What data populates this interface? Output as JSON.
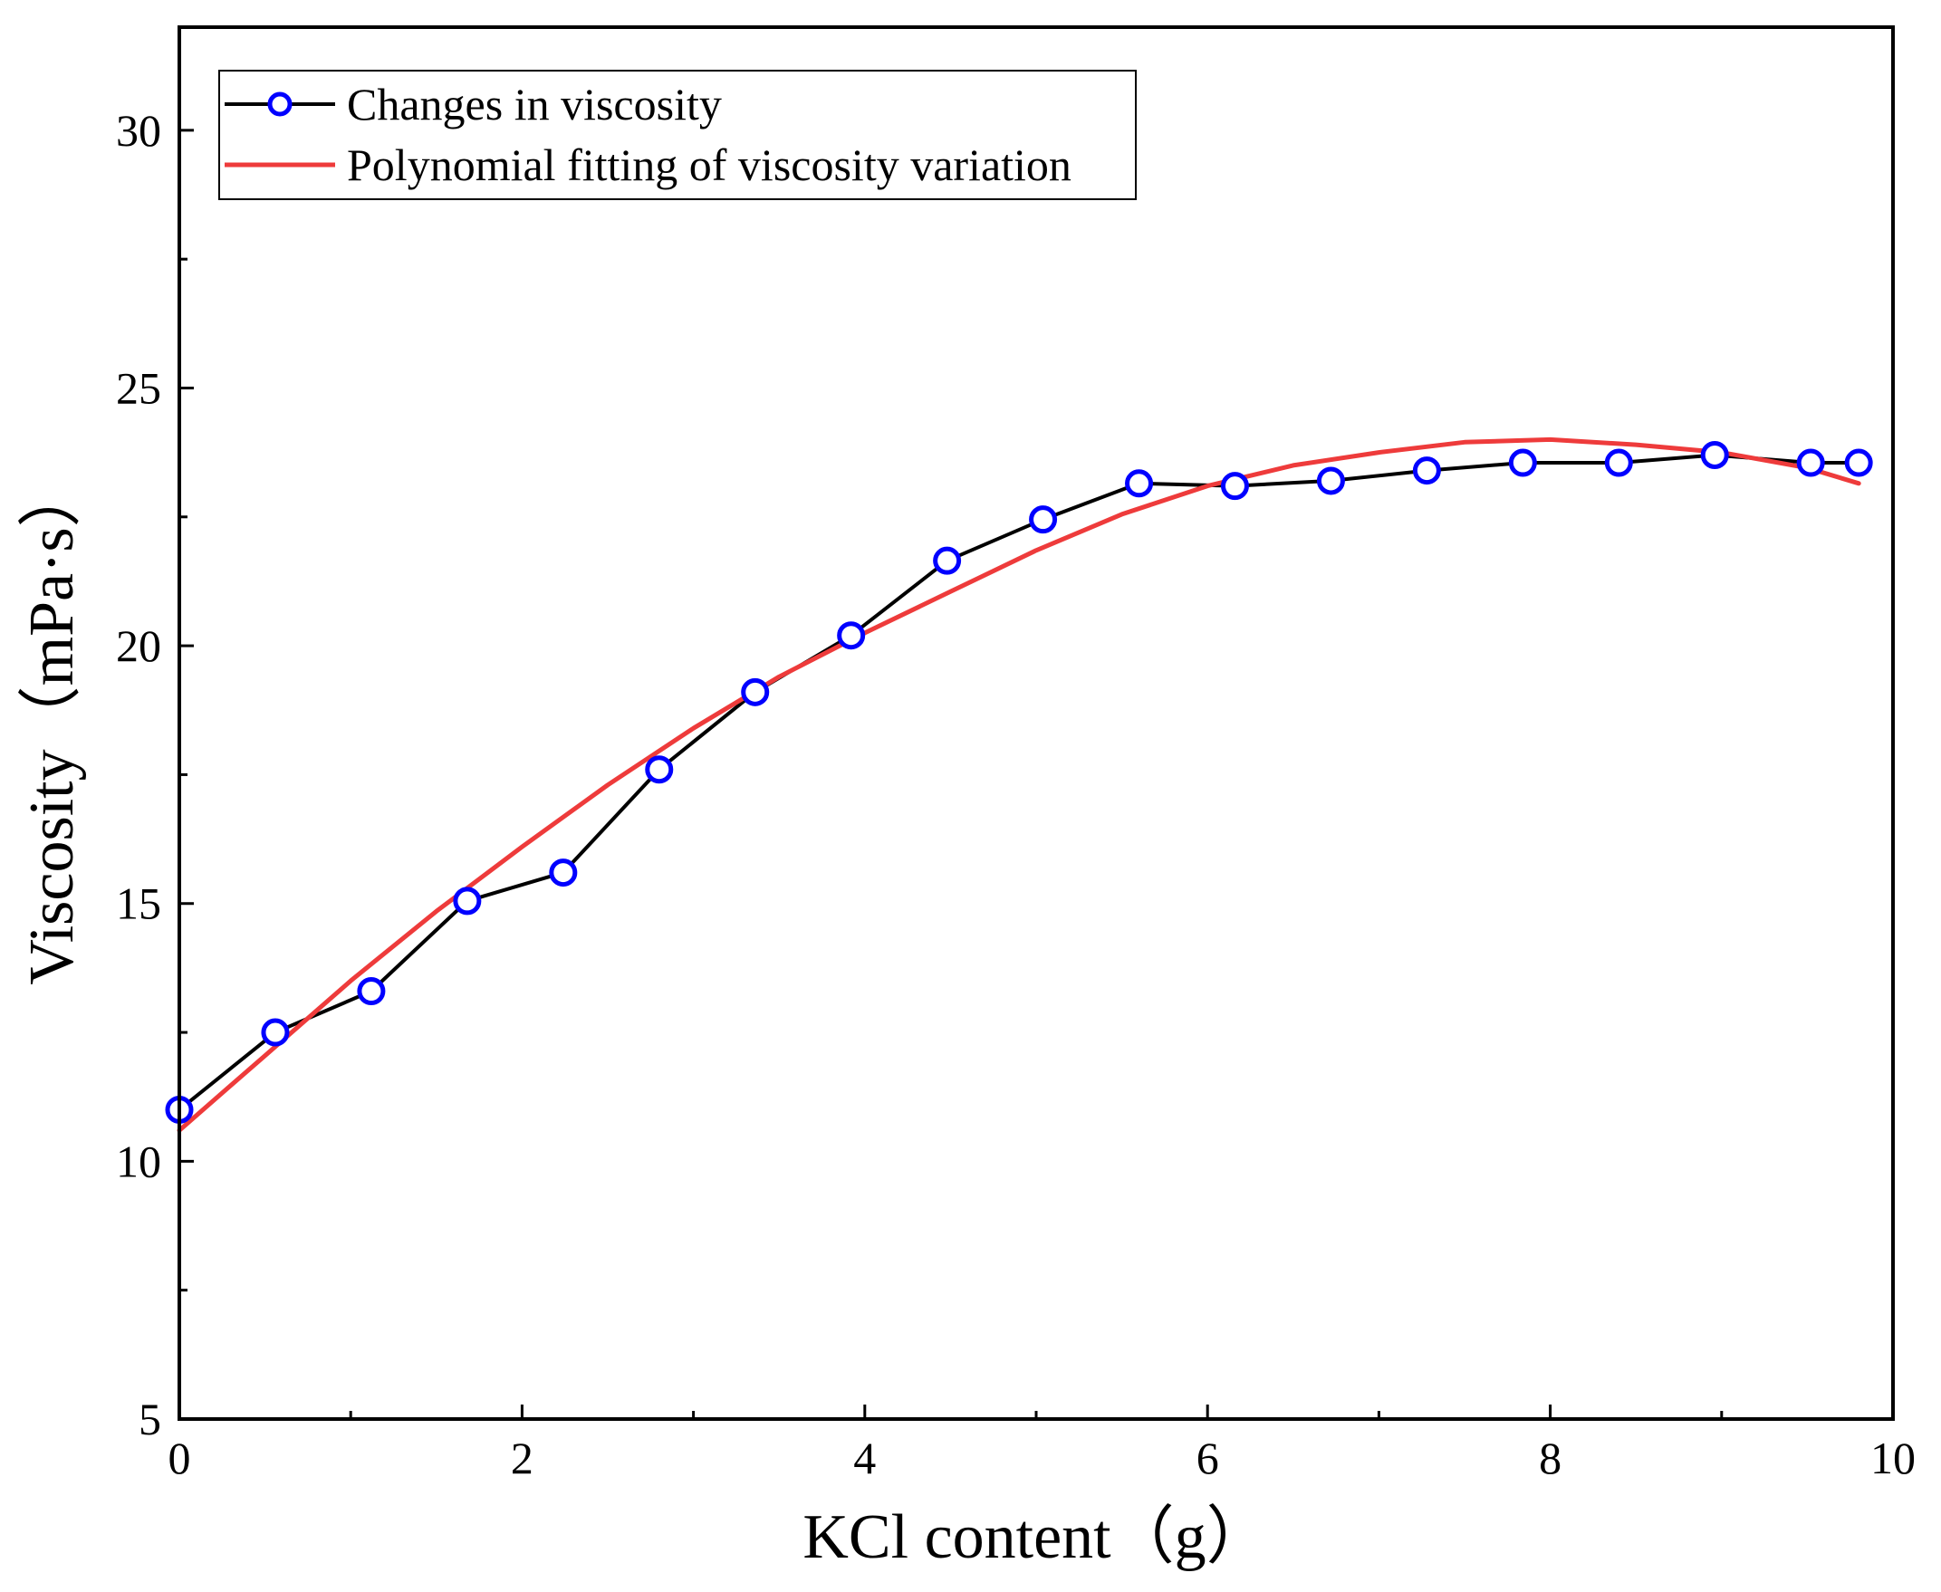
{
  "chart_data": {
    "type": "line",
    "xlabel": "KCl content（g）",
    "ylabel": "Viscosity（mPa·s）",
    "xlim": [
      0,
      10
    ],
    "ylim": [
      5,
      32
    ],
    "x_ticks": [
      0,
      2,
      4,
      6,
      8,
      10
    ],
    "x_tick_labels": [
      "0",
      "2",
      "4",
      "6",
      "8",
      "10"
    ],
    "x_minor_ticks": [
      1,
      3,
      5,
      7,
      9
    ],
    "y_ticks": [
      5,
      10,
      15,
      20,
      25,
      30
    ],
    "y_tick_labels": [
      "5",
      "10",
      "15",
      "20",
      "25",
      "30"
    ],
    "y_minor_ticks": [
      7.5,
      12.5,
      17.5,
      22.5,
      27.5
    ],
    "grid": false,
    "legend_position": "top-left",
    "series": [
      {
        "name": "Changes in viscosity",
        "color": "#000000",
        "marker_color": "#0000ff",
        "marker": "circle",
        "x": [
          0,
          0.56,
          1.12,
          1.68,
          2.24,
          2.8,
          3.36,
          3.92,
          4.48,
          5.04,
          5.6,
          6.16,
          6.72,
          7.28,
          7.84,
          8.4,
          8.96,
          9.52,
          9.8
        ],
        "values": [
          11.0,
          12.5,
          13.3,
          15.05,
          15.6,
          17.6,
          19.1,
          20.2,
          21.65,
          22.45,
          23.15,
          23.1,
          23.2,
          23.4,
          23.55,
          23.55,
          23.7,
          23.55,
          23.55
        ]
      },
      {
        "name": "Polynomial fitting of viscosity variation",
        "color": "#ee3b3b",
        "type": "fit",
        "x": [
          0,
          0.5,
          1,
          1.5,
          2,
          2.5,
          3,
          3.5,
          4,
          4.5,
          5,
          5.5,
          6,
          6.5,
          7,
          7.5,
          8,
          8.5,
          9,
          9.5,
          9.8
        ],
        "values": [
          10.6,
          12.05,
          13.5,
          14.85,
          16.1,
          17.3,
          18.4,
          19.4,
          20.25,
          21.05,
          21.85,
          22.55,
          23.1,
          23.5,
          23.75,
          23.95,
          24.0,
          23.9,
          23.75,
          23.45,
          23.15
        ]
      }
    ]
  }
}
